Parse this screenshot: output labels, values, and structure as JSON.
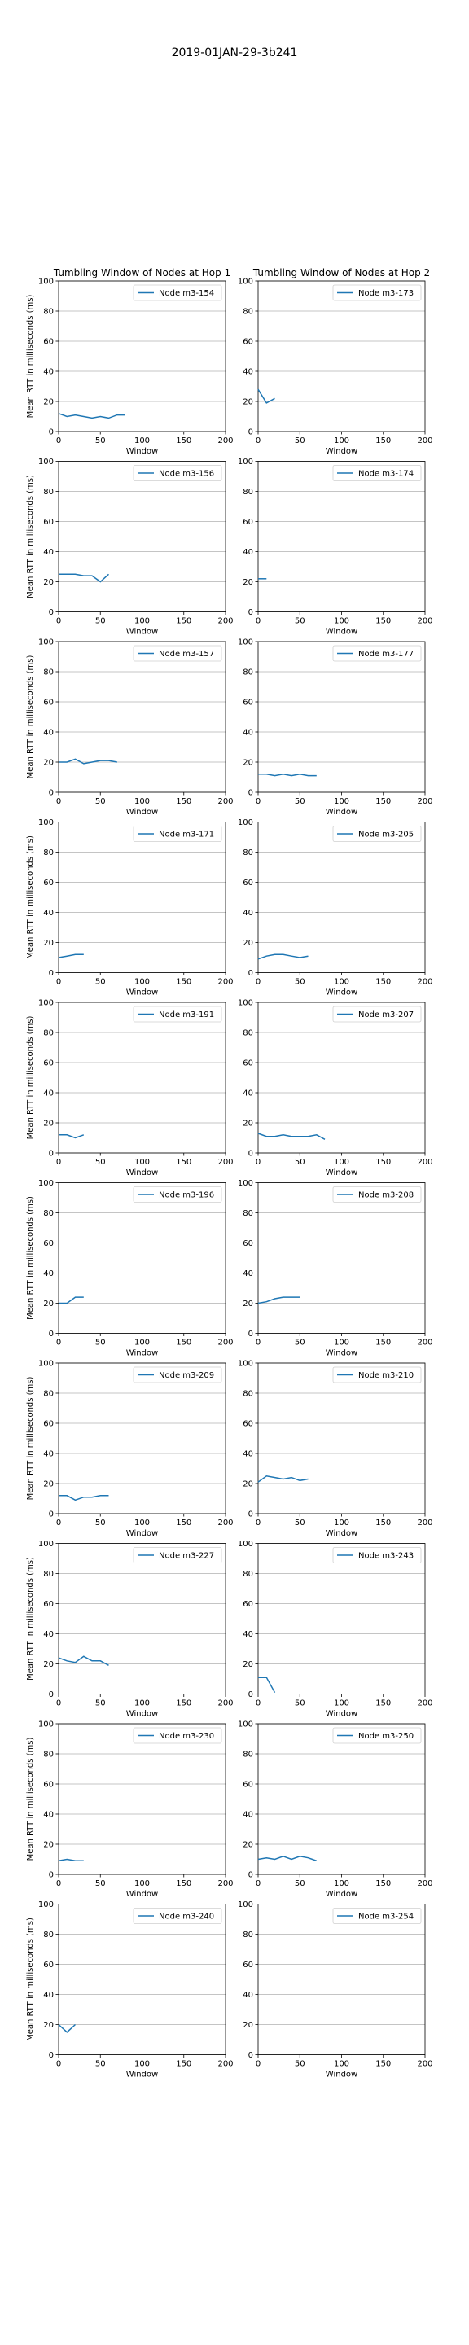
{
  "figure_title": "2019-01JAN-29-3b241",
  "column_titles": [
    "Tumbling Window of Nodes at Hop 1",
    "Tumbling Window of Nodes at Hop 2"
  ],
  "colors": {
    "line": "#1f77b4",
    "grid": "#b0b0b0",
    "axes": "#000000"
  },
  "chart_data": [
    {
      "type": "line",
      "column": 0,
      "row": 0,
      "title": "Tumbling Window of Nodes at Hop 1",
      "xlabel": "Window",
      "ylabel": "Mean RTT in milliseconds (ms)",
      "xlim": [
        0,
        200
      ],
      "ylim": [
        0,
        100
      ],
      "xticks": [
        0,
        50,
        100,
        150,
        200
      ],
      "yticks": [
        0,
        20,
        40,
        60,
        80,
        100
      ],
      "grid": "horizontal",
      "legend": "upper right",
      "series": [
        {
          "name": "Node m3-154",
          "x": [
            0,
            10,
            20,
            30,
            40,
            50,
            60,
            70,
            80
          ],
          "y": [
            12,
            10,
            11,
            10,
            9,
            10,
            9,
            11,
            11
          ]
        }
      ]
    },
    {
      "type": "line",
      "column": 1,
      "row": 0,
      "title": "Tumbling Window of Nodes at Hop 2",
      "xlabel": "Window",
      "ylabel": "",
      "xlim": [
        0,
        200
      ],
      "ylim": [
        0,
        100
      ],
      "xticks": [
        0,
        50,
        100,
        150,
        200
      ],
      "yticks": [
        0,
        20,
        40,
        60,
        80,
        100
      ],
      "grid": "horizontal",
      "legend": "upper right",
      "series": [
        {
          "name": "Node m3-173",
          "x": [
            0,
            10,
            20
          ],
          "y": [
            28,
            19,
            22
          ]
        }
      ]
    },
    {
      "type": "line",
      "column": 0,
      "row": 1,
      "xlabel": "Window",
      "ylabel": "Mean RTT in milliseconds (ms)",
      "xlim": [
        0,
        200
      ],
      "ylim": [
        0,
        100
      ],
      "xticks": [
        0,
        50,
        100,
        150,
        200
      ],
      "yticks": [
        0,
        20,
        40,
        60,
        80,
        100
      ],
      "grid": "horizontal",
      "legend": "upper right",
      "series": [
        {
          "name": "Node m3-156",
          "x": [
            0,
            10,
            20,
            30,
            40,
            50,
            60
          ],
          "y": [
            25,
            25,
            25,
            24,
            24,
            20,
            25
          ]
        }
      ]
    },
    {
      "type": "line",
      "column": 1,
      "row": 1,
      "xlabel": "Window",
      "ylabel": "",
      "xlim": [
        0,
        200
      ],
      "ylim": [
        0,
        100
      ],
      "xticks": [
        0,
        50,
        100,
        150,
        200
      ],
      "yticks": [
        0,
        20,
        40,
        60,
        80,
        100
      ],
      "grid": "horizontal",
      "legend": "upper right",
      "series": [
        {
          "name": "Node m3-174",
          "x": [
            0,
            10
          ],
          "y": [
            22,
            22
          ]
        }
      ]
    },
    {
      "type": "line",
      "column": 0,
      "row": 2,
      "xlabel": "Window",
      "ylabel": "Mean RTT in milliseconds (ms)",
      "xlim": [
        0,
        200
      ],
      "ylim": [
        0,
        100
      ],
      "xticks": [
        0,
        50,
        100,
        150,
        200
      ],
      "yticks": [
        0,
        20,
        40,
        60,
        80,
        100
      ],
      "grid": "horizontal",
      "legend": "upper right",
      "series": [
        {
          "name": "Node m3-157",
          "x": [
            0,
            10,
            20,
            30,
            40,
            50,
            60,
            70
          ],
          "y": [
            20,
            20,
            22,
            19,
            20,
            21,
            21,
            20
          ]
        }
      ]
    },
    {
      "type": "line",
      "column": 1,
      "row": 2,
      "xlabel": "Window",
      "ylabel": "",
      "xlim": [
        0,
        200
      ],
      "ylim": [
        0,
        100
      ],
      "xticks": [
        0,
        50,
        100,
        150,
        200
      ],
      "yticks": [
        0,
        20,
        40,
        60,
        80,
        100
      ],
      "grid": "horizontal",
      "legend": "upper right",
      "series": [
        {
          "name": "Node m3-177",
          "x": [
            0,
            10,
            20,
            30,
            40,
            50,
            60,
            70
          ],
          "y": [
            12,
            12,
            11,
            12,
            11,
            12,
            11,
            11
          ]
        }
      ]
    },
    {
      "type": "line",
      "column": 0,
      "row": 3,
      "xlabel": "Window",
      "ylabel": "Mean RTT in milliseconds (ms)",
      "xlim": [
        0,
        200
      ],
      "ylim": [
        0,
        100
      ],
      "xticks": [
        0,
        50,
        100,
        150,
        200
      ],
      "yticks": [
        0,
        20,
        40,
        60,
        80,
        100
      ],
      "grid": "horizontal",
      "legend": "upper right",
      "series": [
        {
          "name": "Node m3-171",
          "x": [
            0,
            10,
            20,
            30
          ],
          "y": [
            10,
            11,
            12,
            12
          ]
        }
      ]
    },
    {
      "type": "line",
      "column": 1,
      "row": 3,
      "xlabel": "Window",
      "ylabel": "",
      "xlim": [
        0,
        200
      ],
      "ylim": [
        0,
        100
      ],
      "xticks": [
        0,
        50,
        100,
        150,
        200
      ],
      "yticks": [
        0,
        20,
        40,
        60,
        80,
        100
      ],
      "grid": "horizontal",
      "legend": "upper right",
      "series": [
        {
          "name": "Node m3-205",
          "x": [
            0,
            10,
            20,
            30,
            40,
            50,
            60
          ],
          "y": [
            9,
            11,
            12,
            12,
            11,
            10,
            11
          ]
        }
      ]
    },
    {
      "type": "line",
      "column": 0,
      "row": 4,
      "xlabel": "Window",
      "ylabel": "Mean RTT in milliseconds (ms)",
      "xlim": [
        0,
        200
      ],
      "ylim": [
        0,
        100
      ],
      "xticks": [
        0,
        50,
        100,
        150,
        200
      ],
      "yticks": [
        0,
        20,
        40,
        60,
        80,
        100
      ],
      "grid": "horizontal",
      "legend": "upper right",
      "series": [
        {
          "name": "Node m3-191",
          "x": [
            0,
            10,
            20,
            30
          ],
          "y": [
            12,
            12,
            10,
            12
          ]
        }
      ]
    },
    {
      "type": "line",
      "column": 1,
      "row": 4,
      "xlabel": "Window",
      "ylabel": "",
      "xlim": [
        0,
        200
      ],
      "ylim": [
        0,
        100
      ],
      "xticks": [
        0,
        50,
        100,
        150,
        200
      ],
      "yticks": [
        0,
        20,
        40,
        60,
        80,
        100
      ],
      "grid": "horizontal",
      "legend": "upper right",
      "series": [
        {
          "name": "Node m3-207",
          "x": [
            0,
            10,
            20,
            30,
            40,
            50,
            60,
            70,
            80
          ],
          "y": [
            13,
            11,
            11,
            12,
            11,
            11,
            11,
            12,
            9
          ]
        }
      ]
    },
    {
      "type": "line",
      "column": 0,
      "row": 5,
      "xlabel": "Window",
      "ylabel": "Mean RTT in milliseconds (ms)",
      "xlim": [
        0,
        200
      ],
      "ylim": [
        0,
        100
      ],
      "xticks": [
        0,
        50,
        100,
        150,
        200
      ],
      "yticks": [
        0,
        20,
        40,
        60,
        80,
        100
      ],
      "grid": "horizontal",
      "legend": "upper right",
      "series": [
        {
          "name": "Node m3-196",
          "x": [
            0,
            10,
            20,
            30
          ],
          "y": [
            20,
            20,
            24,
            24
          ]
        }
      ]
    },
    {
      "type": "line",
      "column": 1,
      "row": 5,
      "xlabel": "Window",
      "ylabel": "",
      "xlim": [
        0,
        200
      ],
      "ylim": [
        0,
        100
      ],
      "xticks": [
        0,
        50,
        100,
        150,
        200
      ],
      "yticks": [
        0,
        20,
        40,
        60,
        80,
        100
      ],
      "grid": "horizontal",
      "legend": "upper right",
      "series": [
        {
          "name": "Node m3-208",
          "x": [
            0,
            10,
            20,
            30,
            40,
            50
          ],
          "y": [
            20,
            21,
            23,
            24,
            24,
            24
          ]
        }
      ]
    },
    {
      "type": "line",
      "column": 0,
      "row": 6,
      "xlabel": "Window",
      "ylabel": "Mean RTT in milliseconds (ms)",
      "xlim": [
        0,
        200
      ],
      "ylim": [
        0,
        100
      ],
      "xticks": [
        0,
        50,
        100,
        150,
        200
      ],
      "yticks": [
        0,
        20,
        40,
        60,
        80,
        100
      ],
      "grid": "horizontal",
      "legend": "upper right",
      "series": [
        {
          "name": "Node m3-209",
          "x": [
            0,
            10,
            20,
            30,
            40,
            50,
            60
          ],
          "y": [
            12,
            12,
            9,
            11,
            11,
            12,
            12
          ]
        }
      ]
    },
    {
      "type": "line",
      "column": 1,
      "row": 6,
      "xlabel": "Window",
      "ylabel": "",
      "xlim": [
        0,
        200
      ],
      "ylim": [
        0,
        100
      ],
      "xticks": [
        0,
        50,
        100,
        150,
        200
      ],
      "yticks": [
        0,
        20,
        40,
        60,
        80,
        100
      ],
      "grid": "horizontal",
      "legend": "upper right",
      "series": [
        {
          "name": "Node m3-210",
          "x": [
            0,
            10,
            20,
            30,
            40,
            50,
            60
          ],
          "y": [
            21,
            25,
            24,
            23,
            24,
            22,
            23
          ]
        }
      ]
    },
    {
      "type": "line",
      "column": 0,
      "row": 7,
      "xlabel": "Window",
      "ylabel": "Mean RTT in milliseconds (ms)",
      "xlim": [
        0,
        200
      ],
      "ylim": [
        0,
        100
      ],
      "xticks": [
        0,
        50,
        100,
        150,
        200
      ],
      "yticks": [
        0,
        20,
        40,
        60,
        80,
        100
      ],
      "grid": "horizontal",
      "legend": "upper right",
      "series": [
        {
          "name": "Node m3-227",
          "x": [
            0,
            10,
            20,
            30,
            40,
            50,
            60
          ],
          "y": [
            24,
            22,
            21,
            25,
            22,
            22,
            19
          ]
        }
      ]
    },
    {
      "type": "line",
      "column": 1,
      "row": 7,
      "xlabel": "Window",
      "ylabel": "",
      "xlim": [
        0,
        200
      ],
      "ylim": [
        0,
        100
      ],
      "xticks": [
        0,
        50,
        100,
        150,
        200
      ],
      "yticks": [
        0,
        20,
        40,
        60,
        80,
        100
      ],
      "grid": "horizontal",
      "legend": "upper right",
      "series": [
        {
          "name": "Node m3-243",
          "x": [
            0,
            10,
            20
          ],
          "y": [
            11,
            11,
            1
          ]
        }
      ]
    },
    {
      "type": "line",
      "column": 0,
      "row": 8,
      "xlabel": "Window",
      "ylabel": "Mean RTT in milliseconds (ms)",
      "xlim": [
        0,
        200
      ],
      "ylim": [
        0,
        100
      ],
      "xticks": [
        0,
        50,
        100,
        150,
        200
      ],
      "yticks": [
        0,
        20,
        40,
        60,
        80,
        100
      ],
      "grid": "horizontal",
      "legend": "upper right",
      "series": [
        {
          "name": "Node m3-230",
          "x": [
            0,
            10,
            20,
            30
          ],
          "y": [
            9,
            10,
            9,
            9
          ]
        }
      ]
    },
    {
      "type": "line",
      "column": 1,
      "row": 8,
      "xlabel": "Window",
      "ylabel": "",
      "xlim": [
        0,
        200
      ],
      "ylim": [
        0,
        100
      ],
      "xticks": [
        0,
        50,
        100,
        150,
        200
      ],
      "yticks": [
        0,
        20,
        40,
        60,
        80,
        100
      ],
      "grid": "horizontal",
      "legend": "upper right",
      "series": [
        {
          "name": "Node m3-250",
          "x": [
            0,
            10,
            20,
            30,
            40,
            50,
            60,
            70
          ],
          "y": [
            10,
            11,
            10,
            12,
            10,
            12,
            11,
            9
          ]
        }
      ]
    },
    {
      "type": "line",
      "column": 0,
      "row": 9,
      "xlabel": "Window",
      "ylabel": "Mean RTT in milliseconds (ms)",
      "xlim": [
        0,
        200
      ],
      "ylim": [
        0,
        100
      ],
      "xticks": [
        0,
        50,
        100,
        150,
        200
      ],
      "yticks": [
        0,
        20,
        40,
        60,
        80,
        100
      ],
      "grid": "horizontal",
      "legend": "upper right",
      "series": [
        {
          "name": "Node m3-240",
          "x": [
            0,
            10,
            20
          ],
          "y": [
            20,
            15,
            20
          ]
        }
      ]
    },
    {
      "type": "line",
      "column": 1,
      "row": 9,
      "xlabel": "Window",
      "ylabel": "",
      "xlim": [
        0,
        200
      ],
      "ylim": [
        0,
        100
      ],
      "xticks": [
        0,
        50,
        100,
        150,
        200
      ],
      "yticks": [
        0,
        20,
        40,
        60,
        80,
        100
      ],
      "grid": "horizontal",
      "legend": "upper right",
      "series": [
        {
          "name": "Node m3-254",
          "x": [],
          "y": []
        }
      ]
    }
  ]
}
